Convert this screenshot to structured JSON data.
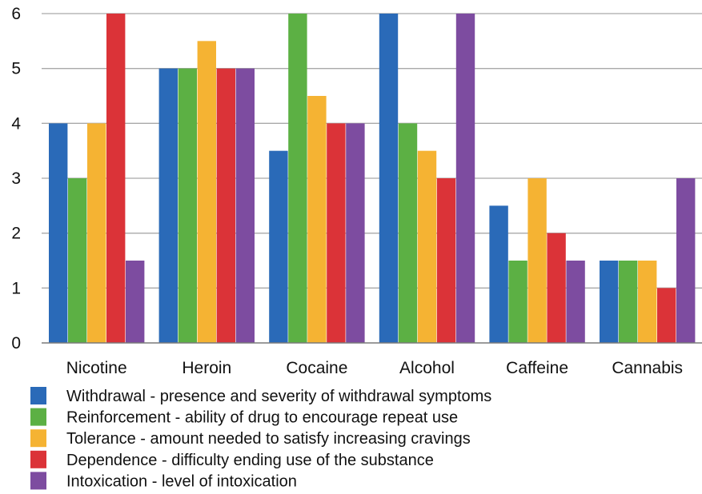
{
  "chart_data": {
    "type": "bar",
    "title": "",
    "xlabel": "",
    "ylabel": "",
    "ylim": [
      0,
      6
    ],
    "yticks": [
      0,
      1,
      2,
      3,
      4,
      5,
      6
    ],
    "grid": true,
    "legend_position": "bottom",
    "categories": [
      "Nicotine",
      "Heroin",
      "Cocaine",
      "Alcohol",
      "Caffeine",
      "Cannabis"
    ],
    "series": [
      {
        "name": "Withdrawal - presence and severity of withdrawal symptoms",
        "color": "#2a6ab8",
        "values": [
          4,
          5,
          3.5,
          6,
          2.5,
          1.5
        ]
      },
      {
        "name": "Reinforcement - ability of drug to encourage repeat use",
        "color": "#5cb044",
        "values": [
          3,
          5,
          6,
          4,
          1.5,
          1.5
        ]
      },
      {
        "name": "Tolerance - amount needed to satisfy increasing cravings",
        "color": "#f5b333",
        "values": [
          4,
          5.5,
          4.5,
          3.5,
          3,
          1.5
        ]
      },
      {
        "name": "Dependence - difficulty ending use of the substance",
        "color": "#db3338",
        "values": [
          6,
          5,
          4,
          3,
          2,
          1
        ]
      },
      {
        "name": "Intoxication - level of intoxication",
        "color": "#7d4ca0",
        "values": [
          1.5,
          5,
          4,
          6,
          1.5,
          3
        ]
      }
    ]
  }
}
